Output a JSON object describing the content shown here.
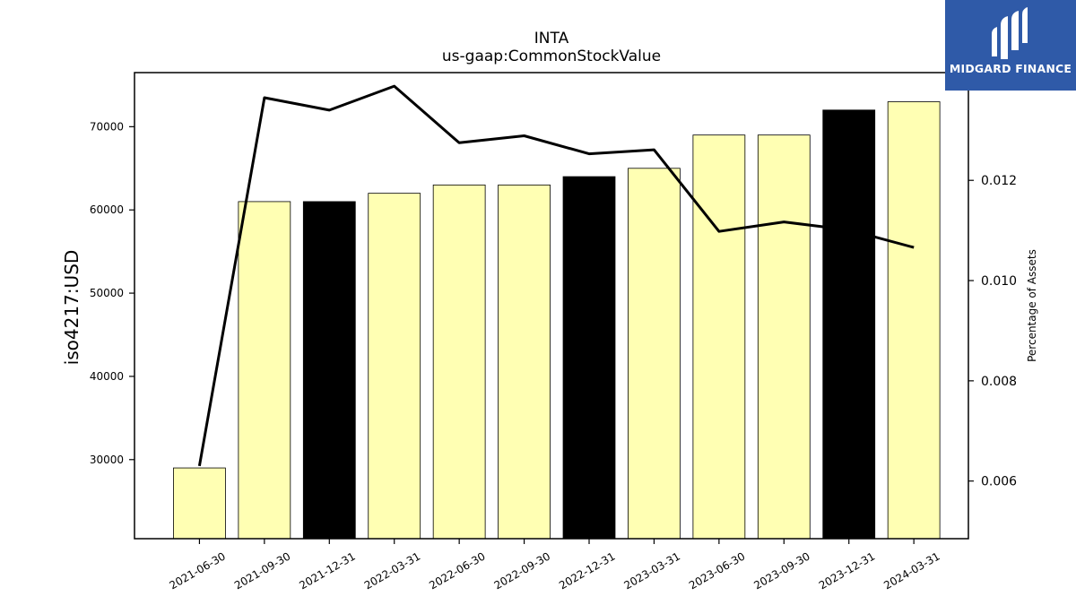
{
  "chart_data": {
    "type": "bar",
    "title": "INTA",
    "subtitle": "us-gaap:CommonStockValue",
    "ylabel": "iso4217:USD",
    "y2label": "Percentage of Assets",
    "categories": [
      "2021-06-30",
      "2021-09-30",
      "2021-12-31",
      "2022-03-31",
      "2022-06-30",
      "2022-09-30",
      "2022-12-31",
      "2023-03-31",
      "2023-06-30",
      "2023-09-30",
      "2023-12-31",
      "2024-03-31"
    ],
    "series": [
      {
        "type": "bar",
        "values": [
          29000,
          61000,
          61000,
          62000,
          63000,
          63000,
          64000,
          65000,
          69000,
          69000,
          72000,
          73000
        ],
        "colors": [
          "#ffffb3",
          "#ffffb3",
          "#000000",
          "#ffffb3",
          "#ffffb3",
          "#ffffb3",
          "#000000",
          "#ffffb3",
          "#ffffb3",
          "#ffffb3",
          "#000000",
          "#ffffb3"
        ]
      },
      {
        "type": "line",
        "axis": "right",
        "color": "#000000",
        "values": [
          0.0063,
          0.01365,
          0.0134,
          0.01388,
          0.01275,
          0.01289,
          0.01253,
          0.01261,
          0.01098,
          0.01117,
          0.01101,
          0.01066
        ]
      }
    ],
    "ylim": [
      20500,
      76500
    ],
    "yticks": [
      30000,
      40000,
      50000,
      60000,
      70000
    ],
    "y2lim": [
      0.00485,
      0.01415
    ],
    "y2ticks": [
      "0.006",
      "0.008",
      "0.010",
      "0.012"
    ],
    "grid": false,
    "legend": "none"
  },
  "logo": {
    "text": "MIDGARD FINANCE",
    "icon": "midgard-logo-icon",
    "background": "#2f5aa8"
  }
}
